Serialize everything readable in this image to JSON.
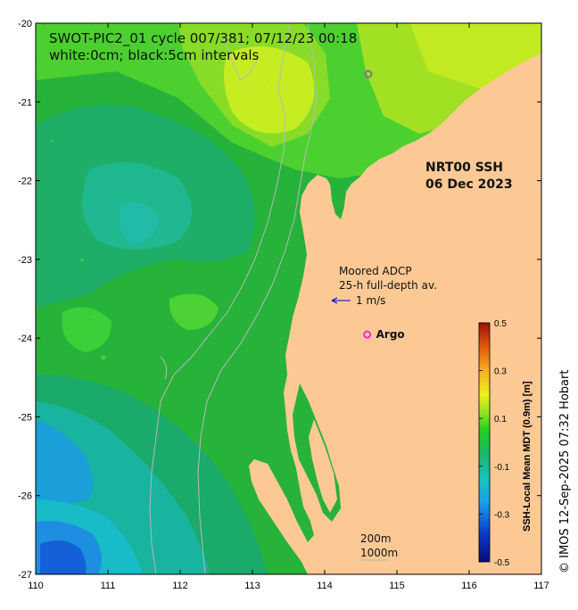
{
  "title_line1": "SWOT-PIC2_01 cycle 007/381; 07/12/23 00:18",
  "title_line2": "white:0cm; black:5cm intervals",
  "product_line1": "NRT00 SSH",
  "product_line2": "06 Dec 2023",
  "adcp_line1": "Moored ADCP",
  "adcp_line2": "25-h full-depth av.",
  "vector_label": "1 m/s",
  "argo_label": "Argo",
  "legend_200m": "200m",
  "legend_1000m": "1000m",
  "colorbar_label": "SSH-Local Mean MDT (0.9m) [m]",
  "credit": "© IMOS 12-Sep-2025 07:32 Hobart",
  "x_ticks": [
    "110",
    "111",
    "112",
    "113",
    "114",
    "115",
    "116",
    "117"
  ],
  "y_ticks": [
    "-20",
    "-21",
    "-22",
    "-23",
    "-24",
    "-25",
    "-26",
    "-27"
  ],
  "colorbar_ticks": [
    "0.5",
    "0.3",
    "0.1",
    "-0.1",
    "-0.3",
    "-0.5"
  ],
  "colors": {
    "land": "#fcc995",
    "isobath": "#b8b8b8",
    "argo": "#ff22dd",
    "vector": "#0000cc"
  },
  "map_data": {
    "lon_range": [
      110,
      117
    ],
    "lat_range": [
      -27,
      -20
    ],
    "colorbar_range": [
      -0.5,
      0.5
    ],
    "argo_position": [
      114.65,
      -24.0
    ]
  }
}
